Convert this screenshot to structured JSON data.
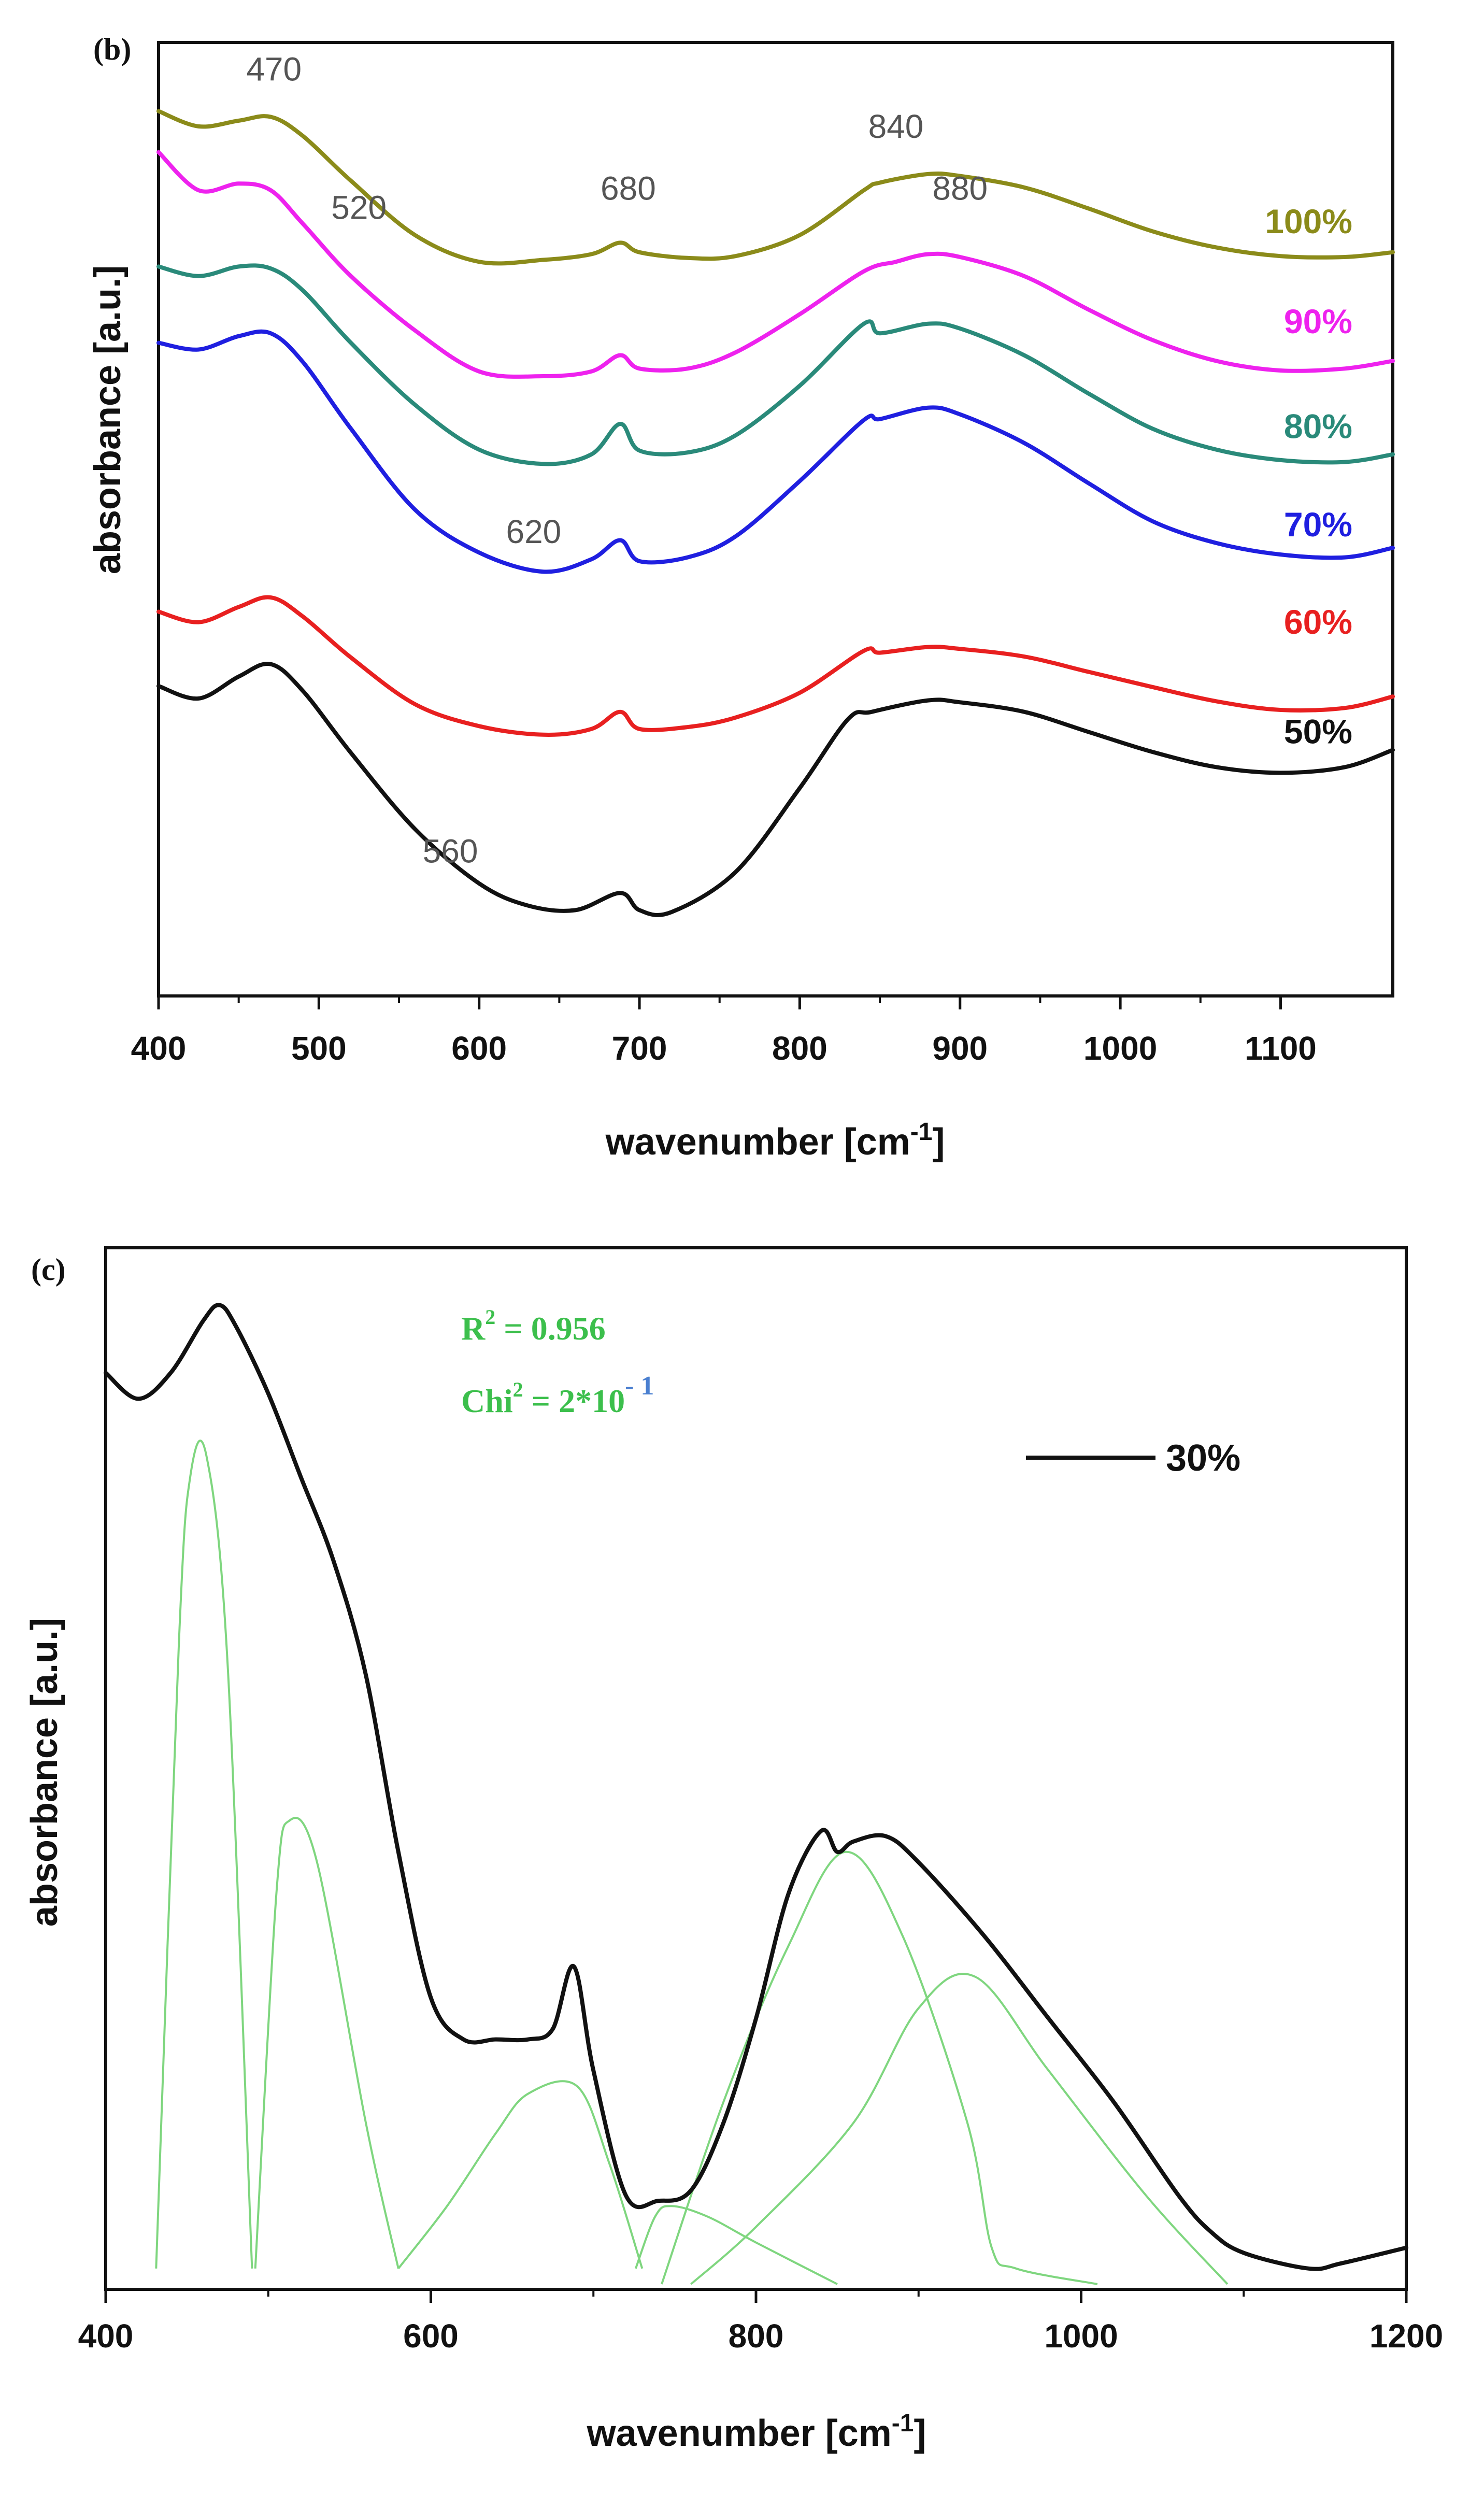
{
  "chart_data": [
    {
      "type": "line",
      "panel_label": "(b)",
      "xlabel": "wavenumber [cm",
      "xlabel_sup": "-1",
      "xlabel_end": "]",
      "ylabel": "absorbance [a.u.]",
      "xlim": [
        400,
        1170
      ],
      "ylim": [
        0,
        10
      ],
      "y_tick_labels": false,
      "grid": false,
      "x_ticks": [
        400,
        500,
        600,
        700,
        800,
        900,
        1000,
        1100
      ],
      "series": [
        {
          "name": "100%",
          "color": "#8b8b1a",
          "x": [
            400,
            425,
            450,
            470,
            490,
            520,
            560,
            600,
            640,
            670,
            688,
            700,
            730,
            760,
            800,
            840,
            850,
            880,
            900,
            940,
            980,
            1020,
            1060,
            1100,
            1140,
            1170
          ],
          "y": [
            9.28,
            9.12,
            9.18,
            9.22,
            9.02,
            8.55,
            7.98,
            7.7,
            7.72,
            7.78,
            7.9,
            7.8,
            7.74,
            7.76,
            7.98,
            8.45,
            8.53,
            8.62,
            8.6,
            8.48,
            8.26,
            8.02,
            7.85,
            7.76,
            7.75,
            7.8
          ]
        },
        {
          "name": "90%",
          "color": "#ee22ee",
          "x": [
            400,
            425,
            450,
            470,
            490,
            520,
            560,
            600,
            640,
            670,
            688,
            700,
            730,
            760,
            800,
            840,
            860,
            880,
            900,
            940,
            980,
            1020,
            1060,
            1100,
            1140,
            1170
          ],
          "y": [
            8.85,
            8.45,
            8.52,
            8.45,
            8.1,
            7.55,
            6.98,
            6.55,
            6.5,
            6.55,
            6.72,
            6.58,
            6.58,
            6.75,
            7.15,
            7.6,
            7.7,
            7.78,
            7.75,
            7.55,
            7.2,
            6.88,
            6.66,
            6.56,
            6.58,
            6.66
          ]
        },
        {
          "name": "80%",
          "color": "#2a8a7a",
          "x": [
            400,
            425,
            450,
            470,
            490,
            520,
            560,
            600,
            640,
            670,
            688,
            700,
            730,
            760,
            800,
            840,
            850,
            880,
            900,
            940,
            980,
            1020,
            1060,
            1100,
            1140,
            1170
          ],
          "y": [
            7.65,
            7.55,
            7.65,
            7.63,
            7.4,
            6.85,
            6.2,
            5.73,
            5.58,
            5.68,
            6.0,
            5.72,
            5.7,
            5.88,
            6.4,
            7.05,
            6.95,
            7.05,
            7.0,
            6.72,
            6.32,
            5.95,
            5.73,
            5.62,
            5.6,
            5.68
          ]
        },
        {
          "name": "70%",
          "color": "#1f1fe0",
          "x": [
            400,
            425,
            450,
            470,
            490,
            520,
            560,
            600,
            640,
            670,
            688,
            700,
            730,
            760,
            800,
            840,
            850,
            880,
            900,
            940,
            980,
            1020,
            1060,
            1100,
            1140,
            1170
          ],
          "y": [
            6.85,
            6.78,
            6.92,
            6.95,
            6.65,
            5.95,
            5.1,
            4.65,
            4.45,
            4.58,
            4.78,
            4.56,
            4.6,
            4.82,
            5.4,
            6.04,
            6.05,
            6.17,
            6.1,
            5.8,
            5.38,
            4.98,
            4.75,
            4.63,
            4.6,
            4.7
          ]
        },
        {
          "name": "60%",
          "color": "#e82020",
          "x": [
            400,
            425,
            450,
            470,
            490,
            520,
            560,
            600,
            640,
            670,
            688,
            700,
            730,
            760,
            800,
            840,
            850,
            880,
            900,
            940,
            980,
            1020,
            1060,
            1100,
            1140,
            1170
          ],
          "y": [
            4.03,
            3.92,
            4.08,
            4.18,
            3.98,
            3.55,
            3.06,
            2.83,
            2.74,
            2.8,
            2.98,
            2.8,
            2.82,
            2.92,
            3.18,
            3.62,
            3.6,
            3.66,
            3.64,
            3.56,
            3.4,
            3.24,
            3.09,
            3.0,
            3.02,
            3.14
          ]
        },
        {
          "name": "50%",
          "color": "#111111",
          "x": [
            400,
            425,
            450,
            470,
            490,
            520,
            560,
            600,
            630,
            660,
            688,
            700,
            720,
            760,
            800,
            830,
            845,
            880,
            900,
            940,
            980,
            1020,
            1060,
            1100,
            1140,
            1170
          ],
          "y": [
            3.25,
            3.12,
            3.35,
            3.48,
            3.2,
            2.55,
            1.75,
            1.18,
            0.95,
            0.9,
            1.08,
            0.9,
            0.88,
            1.3,
            2.18,
            2.9,
            2.98,
            3.1,
            3.08,
            2.98,
            2.77,
            2.56,
            2.4,
            2.34,
            2.4,
            2.58
          ]
        }
      ],
      "annotations": [
        {
          "text": "470",
          "x": 472,
          "y": 9.6
        },
        {
          "text": "520",
          "x": 525,
          "y": 8.15
        },
        {
          "text": "680",
          "x": 693,
          "y": 8.35
        },
        {
          "text": "840",
          "x": 860,
          "y": 9.0
        },
        {
          "text": "880",
          "x": 900,
          "y": 8.35
        },
        {
          "text": "620",
          "x": 634,
          "y": 4.75
        },
        {
          "text": "560",
          "x": 582,
          "y": 1.4
        }
      ],
      "end_labels": [
        {
          "text": "100%",
          "y": 8.0
        },
        {
          "text": "90%",
          "y": 6.95
        },
        {
          "text": "80%",
          "y": 5.85
        },
        {
          "text": "70%",
          "y": 4.82
        },
        {
          "text": "60%",
          "y": 3.8
        },
        {
          "text": "50%",
          "y": 2.65
        }
      ]
    },
    {
      "type": "line",
      "panel_label": "(c)",
      "xlabel": "wavenumber [cm",
      "xlabel_sup": "-1",
      "xlabel_end": "]",
      "ylabel": "absorbance [a.u.]",
      "xlim": [
        400,
        1200
      ],
      "ylim": [
        0,
        10
      ],
      "y_tick_labels": false,
      "grid": false,
      "x_ticks": [
        400,
        600,
        800,
        1000,
        1200
      ],
      "legend": {
        "position": "top-right",
        "entries": [
          "30%"
        ]
      },
      "fit_stats": {
        "r2_prefix": "R",
        "r2_sup": "2",
        "r2_rest": " = 0.956",
        "chi_prefix": "Chi",
        "chi_sup": "2",
        "chi_rest": " = 2*10",
        "chi_exp": "- 1"
      },
      "series": [
        {
          "name": "30%",
          "color": "#111111",
          "x": [
            400,
            420,
            440,
            460,
            470,
            480,
            500,
            520,
            540,
            560,
            580,
            600,
            620,
            640,
            660,
            675,
            688,
            700,
            720,
            740,
            760,
            780,
            800,
            820,
            840,
            850,
            860,
            880,
            900,
            940,
            980,
            1020,
            1060,
            1080,
            1100,
            1140,
            1160,
            1200
          ],
          "y": [
            8.8,
            8.55,
            8.8,
            9.3,
            9.45,
            9.25,
            8.6,
            7.8,
            7.0,
            5.9,
            4.2,
            2.8,
            2.4,
            2.4,
            2.4,
            2.5,
            3.1,
            2.1,
            0.9,
            0.85,
            0.95,
            1.6,
            2.6,
            3.8,
            4.4,
            4.2,
            4.3,
            4.35,
            4.1,
            3.4,
            2.6,
            1.8,
            0.9,
            0.55,
            0.35,
            0.2,
            0.25,
            0.4
          ]
        }
      ],
      "fit_components": [
        {
          "color": "#7fd67f",
          "x": [
            431,
            445,
            452,
            462,
            475,
            490
          ],
          "y": [
            0.2,
            6.2,
            7.8,
            8.0,
            6.0,
            0.2
          ]
        },
        {
          "color": "#7fd67f",
          "x": [
            492,
            505,
            513,
            530,
            560,
            580
          ],
          "y": [
            0.2,
            3.8,
            4.5,
            4.1,
            1.6,
            0.2
          ]
        },
        {
          "color": "#7fd67f",
          "x": [
            580,
            610,
            640,
            660,
            690,
            710,
            730
          ],
          "y": [
            0.2,
            0.8,
            1.5,
            1.88,
            1.95,
            1.2,
            0.2
          ]
        },
        {
          "color": "#7fd67f",
          "x": [
            726,
            738,
            748,
            770,
            800,
            850
          ],
          "y": [
            0.2,
            0.7,
            0.8,
            0.7,
            0.45,
            0.05
          ]
        },
        {
          "color": "#7fd67f",
          "x": [
            742,
            780,
            820,
            855,
            890,
            930,
            945,
            960,
            1010
          ],
          "y": [
            0.05,
            1.8,
            3.3,
            4.2,
            3.4,
            1.6,
            0.4,
            0.2,
            0.05
          ]
        },
        {
          "color": "#7fd67f",
          "x": [
            760,
            800,
            860,
            900,
            935,
            980,
            1040,
            1090
          ],
          "y": [
            0.05,
            0.6,
            1.6,
            2.7,
            3.0,
            2.1,
            0.9,
            0.05
          ]
        }
      ]
    }
  ]
}
